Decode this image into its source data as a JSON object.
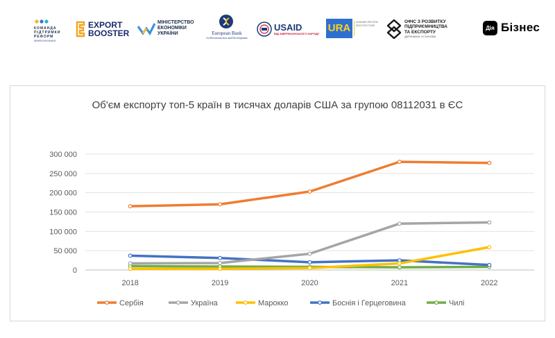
{
  "logos": {
    "reform_team": [
      "КОМАНДА",
      "ПІДТРИМКИ",
      "РЕФОРМ"
    ],
    "reform_team_sub": "МІНЕКОНОМІКИ",
    "export_booster": [
      "EXPORT",
      "BOOSTER"
    ],
    "ministry": [
      "МІНІСТЕРСТВО",
      "ЕКОНОМІКИ",
      "УКРАЇНИ"
    ],
    "ebrd": [
      "European Bank",
      "for Reconstruction and Development"
    ],
    "usaid": "USAID",
    "usaid_sub": "ВІД АМЕРИКАНСЬКОГО НАРОДУ",
    "ura": "URA",
    "ura_sub": "UKRAINE REFORM ARCHITECTURE",
    "office": [
      "ОФІС З РОЗВИТКУ",
      "ПІДПРИЄМНИЦТВА",
      "ТА ЕКСПОРТУ"
    ],
    "office_sub": "ДЕРЖАВНА УСТАНОВА",
    "diia_mark": "Дія",
    "diia_text": "Бізнес"
  },
  "colors": {
    "Сербія": "#ED7D31",
    "Україна": "#A5A5A5",
    "Марокко": "#FFC000",
    "Боснія і Герцеговина": "#4472C4",
    "Чилі": "#70AD47"
  },
  "chart_data": {
    "type": "line",
    "title": "Об'єм експорту топ-5 країн в тисячах доларів США за групою 08112031 в ЄС",
    "categories": [
      "2018",
      "2019",
      "2020",
      "2021",
      "2022"
    ],
    "ylim": [
      0,
      300000
    ],
    "yticks": [
      "0",
      "50 000",
      "100 000",
      "150 000",
      "200 000",
      "250 000",
      "300 000"
    ],
    "legend_position": "bottom",
    "series": [
      {
        "name": "Сербія",
        "values": [
          165000,
          170000,
          203000,
          280000,
          277000
        ]
      },
      {
        "name": "Україна",
        "values": [
          17000,
          18000,
          42000,
          120000,
          123000
        ]
      },
      {
        "name": "Марокко",
        "values": [
          3000,
          3000,
          5000,
          17000,
          59000
        ]
      },
      {
        "name": "Боснія і Герцеговина",
        "values": [
          37000,
          31000,
          20000,
          25000,
          13000
        ]
      },
      {
        "name": "Чилі",
        "values": [
          10000,
          9000,
          8000,
          7000,
          8000
        ]
      }
    ]
  }
}
